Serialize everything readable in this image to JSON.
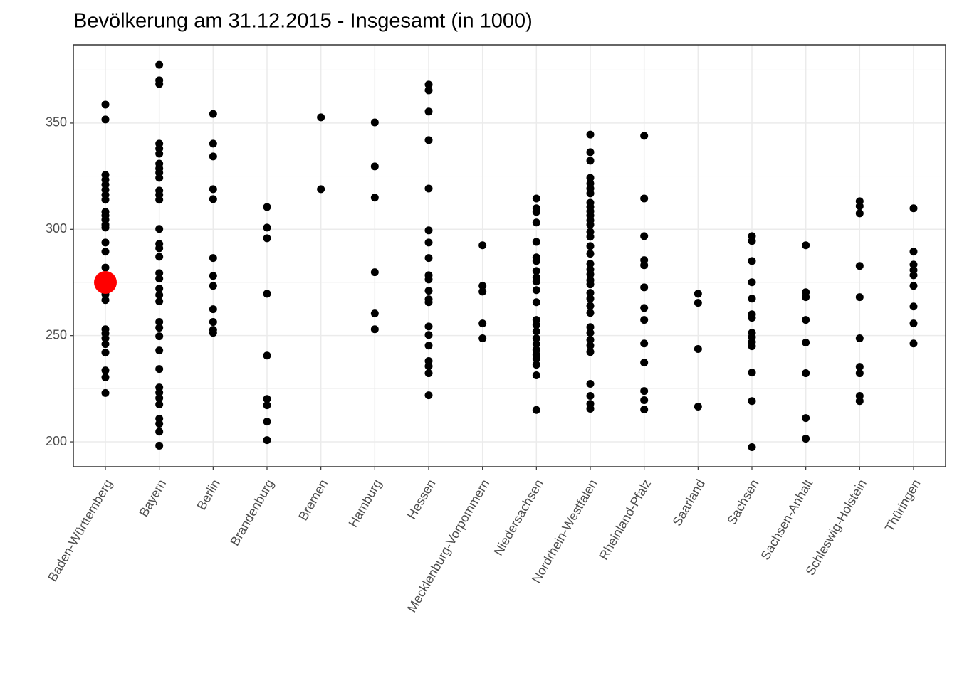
{
  "chart_data": {
    "type": "strip",
    "title": "Bevölkerung am 31.12.2015 - Insgesamt (in 1000)",
    "categories": [
      "Baden-Württemberg",
      "Bayern",
      "Berlin",
      "Brandenburg",
      "Bremen",
      "Hamburg",
      "Hessen",
      "Mecklenburg-Vorpommern",
      "Niedersachsen",
      "Nordrhein-Westfalen",
      "Rheinland-Pfalz",
      "Saarland",
      "Sachsen",
      "Sachsen-Anhalt",
      "Schleswig-Holstein",
      "Thüringen"
    ],
    "values": [
      [
        358.7,
        351.7,
        325.6,
        323.3,
        321,
        318.6,
        316.2,
        313.9,
        308.2,
        306.5,
        304.5,
        302.2,
        300.8,
        293.8,
        289.5,
        282,
        277.8,
        275.4,
        273.4,
        271.4,
        269.4,
        266.7,
        253,
        251,
        248.7,
        246,
        242,
        233.6,
        230.3,
        223
      ],
      [
        377.4,
        370.1,
        368.4,
        340.3,
        338,
        335.6,
        330.9,
        328.6,
        326.6,
        324.2,
        318.2,
        316.2,
        313.9,
        300.2,
        293.1,
        291.1,
        287.1,
        279.4,
        276.8,
        272.1,
        269.1,
        266.1,
        256.4,
        253.7,
        249.7,
        243,
        234.3,
        225.6,
        223.2,
        220.6,
        217.6,
        210.9,
        208.5,
        204.8,
        198.2
      ],
      [
        354.3,
        340.3,
        334.3,
        318.9,
        314.2,
        286.5,
        278.1,
        273.4,
        262.4,
        256.4,
        252.7,
        251.3
      ],
      [
        310.5,
        300.8,
        295.8,
        269.7,
        240.6,
        220.2,
        217.2,
        209.5,
        200.8
      ],
      [
        352.7,
        318.9
      ],
      [
        350.3,
        329.6,
        314.9,
        279.8,
        260.4,
        253
      ],
      [
        368.1,
        365.4,
        355.4,
        342,
        319.2,
        299.5,
        293.8,
        286.5,
        278.4,
        276.4,
        271.1,
        267.1,
        265.7,
        254.3,
        250.3,
        245.3,
        238,
        235.6,
        232.3,
        221.9
      ],
      [
        292.5,
        273.4,
        270.7,
        255.7,
        248.7
      ],
      [
        314.5,
        309.9,
        308.2,
        303.2,
        294.1,
        286.8,
        285.1,
        280.4,
        277.4,
        275.4,
        271.4,
        265.7,
        257.4,
        255,
        252,
        248.7,
        246,
        243.3,
        241,
        239,
        236.3,
        231.3,
        215
      ],
      [
        344.6,
        336.3,
        332.3,
        324.2,
        321.6,
        319.2,
        316.9,
        312.5,
        310.5,
        308.5,
        306.5,
        304.2,
        302.2,
        298.8,
        296.5,
        292.1,
        288.5,
        283.8,
        281.1,
        278.8,
        276.1,
        274.1,
        270.1,
        267.4,
        264,
        260.7,
        254,
        251.3,
        248,
        245.3,
        242.3,
        227.3,
        221.6,
        217.9,
        215.6
      ],
      [
        344,
        314.5,
        296.8,
        285.5,
        283.1,
        272.7,
        263,
        257.4,
        246.3,
        237.3,
        223.9,
        219.6,
        215.2
      ],
      [
        269.7,
        265.4,
        243.7,
        216.6
      ],
      [
        296.8,
        294.5,
        285.1,
        275.1,
        267.4,
        260,
        258.4,
        251.3,
        249.3,
        247,
        245,
        232.6,
        219.2,
        197.5
      ],
      [
        292.5,
        270.4,
        268.1,
        257.4,
        246.7,
        232.3,
        211.2,
        201.5
      ],
      [
        313.2,
        310.9,
        307.5,
        282.8,
        268.1,
        248.7,
        235.3,
        232.3,
        221.6,
        219.2
      ],
      [
        309.9,
        289.5,
        283.4,
        280.8,
        278.4,
        273.4,
        263.7,
        255.7,
        246.3
      ]
    ],
    "color": "#000000",
    "highlight": {
      "x": "Baden-Württemberg",
      "value": 275,
      "color": "#ff0000"
    },
    "ylim": [
      188.3,
      386.8
    ],
    "yticks": [
      200,
      250,
      300,
      350
    ],
    "minor_yticks": [
      225,
      275,
      325,
      375
    ],
    "grid": true
  }
}
